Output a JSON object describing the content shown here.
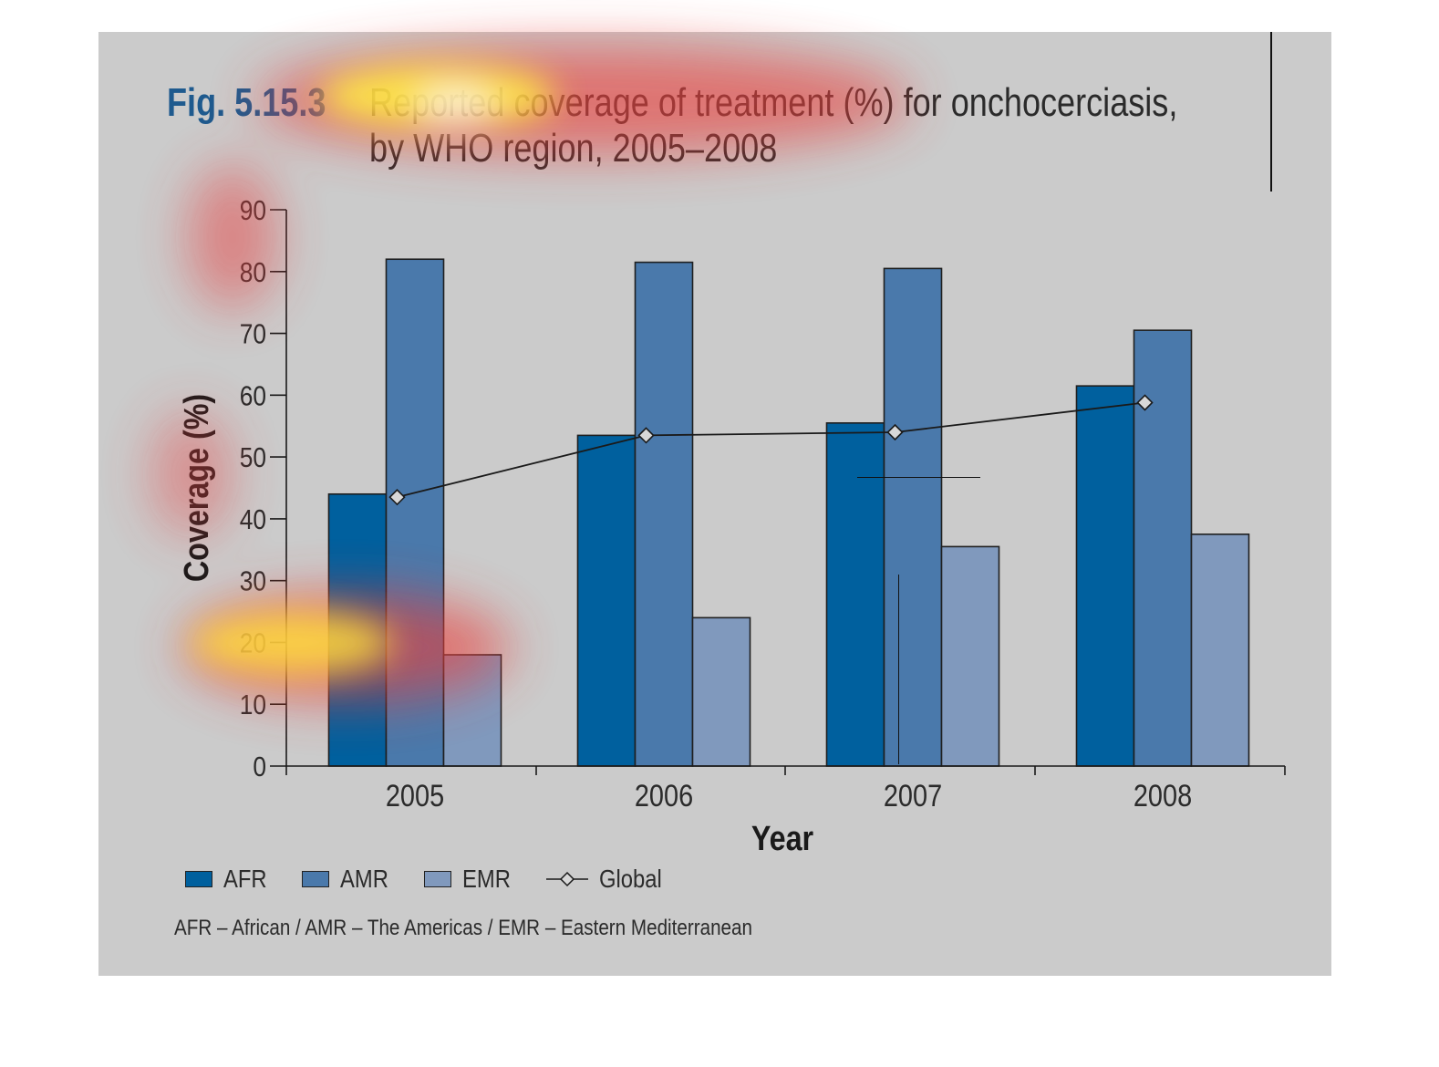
{
  "figure": {
    "number": "Fig. 5.15.3",
    "title_line1": "Reported coverage of treatment (%) for onchocerciasis,",
    "title_line2": "by WHO region, 2005–2008",
    "footnote": "AFR – African / AMR – The Americas / EMR – Eastern Mediterranean"
  },
  "chart_data": {
    "type": "bar",
    "categories": [
      "2005",
      "2006",
      "2007",
      "2008"
    ],
    "series": [
      {
        "name": "AFR",
        "kind": "bar",
        "color": "#00609e",
        "values": [
          44,
          53.5,
          55.5,
          61.5
        ]
      },
      {
        "name": "AMR",
        "kind": "bar",
        "color": "#4a79ab",
        "values": [
          82,
          81.5,
          80.5,
          70.5
        ]
      },
      {
        "name": "EMR",
        "kind": "bar",
        "color": "#8099bd",
        "values": [
          18,
          24,
          35.5,
          37.5
        ]
      },
      {
        "name": "Global",
        "kind": "line",
        "color": "#1a1a1a",
        "values": [
          43.5,
          53.5,
          54,
          58.8
        ]
      }
    ],
    "xlabel": "Year",
    "ylabel": "Coverage (%)",
    "ylim": [
      0,
      90
    ],
    "yticks": [
      0,
      10,
      20,
      30,
      40,
      50,
      60,
      70,
      80,
      90
    ],
    "grid": false,
    "legend": "bottom-left"
  },
  "colors": {
    "panel_background": "#cbcbcb",
    "figure_number": "#1e5a8e",
    "text": "#2b2b2b",
    "heatmap_overlay": "attention heatmap (red-yellow)"
  }
}
